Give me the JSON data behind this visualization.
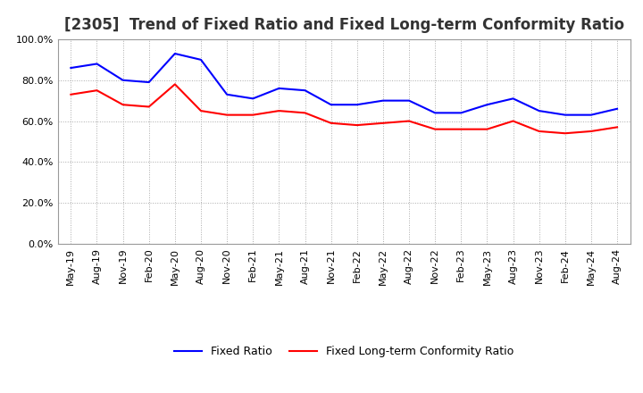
{
  "title": "[2305]  Trend of Fixed Ratio and Fixed Long-term Conformity Ratio",
  "x_labels": [
    "May-19",
    "Aug-19",
    "Nov-19",
    "Feb-20",
    "May-20",
    "Aug-20",
    "Nov-20",
    "Feb-21",
    "May-21",
    "Aug-21",
    "Nov-21",
    "Feb-22",
    "May-22",
    "Aug-22",
    "Nov-22",
    "Feb-23",
    "May-23",
    "Aug-23",
    "Nov-23",
    "Feb-24",
    "May-24",
    "Aug-24"
  ],
  "fixed_ratio": [
    86,
    88,
    80,
    79,
    93,
    90,
    73,
    71,
    76,
    75,
    68,
    68,
    70,
    70,
    64,
    64,
    68,
    71,
    65,
    63,
    63,
    66
  ],
  "fixed_longterm": [
    73,
    75,
    68,
    67,
    78,
    65,
    63,
    63,
    65,
    64,
    59,
    58,
    59,
    60,
    56,
    56,
    56,
    60,
    55,
    54,
    55,
    57
  ],
  "fixed_ratio_color": "#0000ff",
  "fixed_longterm_color": "#ff0000",
  "ylim": [
    0,
    100
  ],
  "yticks": [
    0,
    20,
    40,
    60,
    80,
    100
  ],
  "grid_color": "#aaaaaa",
  "background_color": "#ffffff",
  "title_fontsize": 12,
  "legend_fixed_ratio": "Fixed Ratio",
  "legend_fixed_longterm": "Fixed Long-term Conformity Ratio"
}
